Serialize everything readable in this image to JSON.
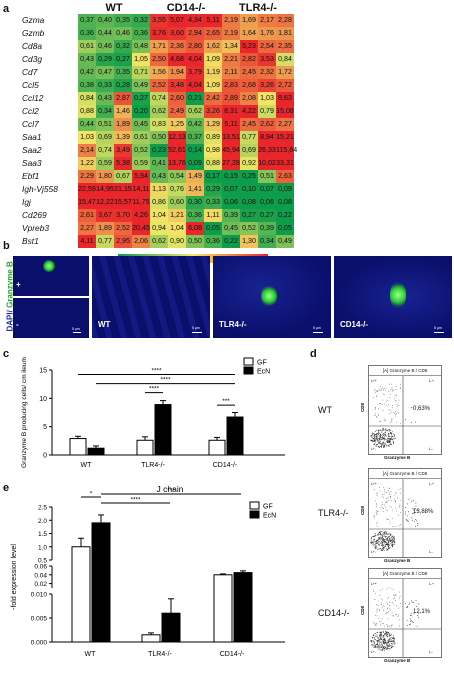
{
  "panel_labels": {
    "a": "a",
    "b": "b",
    "c": "c",
    "d": "d",
    "e": "e"
  },
  "heatmap": {
    "groups": [
      "WT",
      "CD14-/-",
      "TLR4-/-"
    ],
    "genes": [
      "Gzma",
      "Gzmb",
      "Cd8a",
      "Cd3g",
      "Cd7",
      "Ccl5",
      "Ccl12",
      "Ccl2",
      "Ccl7",
      "Saa1",
      "Saa2",
      "Saa3",
      "Ebf1",
      "Igh-Vj558",
      "Igj",
      "Cd269",
      "Vpreb3",
      "Bst1"
    ],
    "values": [
      [
        "0,37",
        "0,40",
        "0,35",
        "0,32",
        "3,55",
        "5,07",
        "4,34",
        "5,11",
        "2,19",
        "1,69",
        "2,17",
        "2,28"
      ],
      [
        "0,36",
        "0,44",
        "0,46",
        "0,36",
        "3,76",
        "3,60",
        "2,94",
        "2,65",
        "2,19",
        "1,64",
        "1,76",
        "1,81"
      ],
      [
        "0,61",
        "0,46",
        "0,32",
        "0,48",
        "1,71",
        "2,36",
        "2,80",
        "1,62",
        "1,34",
        "5,23",
        "2,54",
        "2,35"
      ],
      [
        "0,43",
        "0,29",
        "0,27",
        "1,05",
        "2,50",
        "4,68",
        "4,04",
        "1,09",
        "2,21",
        "2,82",
        "3,53",
        "0,84"
      ],
      [
        "0,42",
        "0,47",
        "0,35",
        "0,71",
        "1,56",
        "1,94",
        "3,79",
        "1,19",
        "2,11",
        "2,45",
        "2,32",
        "1,72"
      ],
      [
        "0,38",
        "0,33",
        "0,28",
        "0,49",
        "2,52",
        "3,48",
        "4,04",
        "1,09",
        "2,83",
        "2,68",
        "3,26",
        "2,72"
      ],
      [
        "0,84",
        "0,43",
        "2,87",
        "0,27",
        "0,74",
        "2,60",
        "0,21",
        "2,42",
        "2,89",
        "2,08",
        "1,03",
        "8,63"
      ],
      [
        "0,88",
        "0,34",
        "1,46",
        "0,20",
        "0,62",
        "2,49",
        "0,62",
        "3,26",
        "8,31",
        "4,22",
        "0,79",
        "15,08"
      ],
      [
        "0,44",
        "0,51",
        "1,89",
        "0,45",
        "0,83",
        "1,25",
        "0,42",
        "1,29",
        "5,11",
        "2,45",
        "2,62",
        "2,27"
      ],
      [
        "1,03",
        "0,69",
        "1,39",
        "0,61",
        "0,50",
        "12,13",
        "0,37",
        "0,89",
        "13,51",
        "0,77",
        "8,94",
        "15,21"
      ],
      [
        "2,14",
        "0,74",
        "3,49",
        "0,52",
        "0,23",
        "52,61",
        "0,14",
        "0,98",
        "45,94",
        "0,69",
        "26,33",
        "115,84"
      ],
      [
        "1,22",
        "0,59",
        "5,38",
        "0,59",
        "0,41",
        "13,76",
        "0,09",
        "0,88",
        "27,28",
        "0,92",
        "10,02",
        "33,31"
      ],
      [
        "2,29",
        "1,80",
        "0,67",
        "5,94",
        "0,43",
        "0,54",
        "1,49",
        "0,17",
        "0,15",
        "0,25",
        "0,51",
        "2,63"
      ],
      [
        "22,59",
        "14,95",
        "21,15",
        "14,11",
        "1,13",
        "0,76",
        "1,41",
        "0,29",
        "0,07",
        "0,10",
        "0,07",
        "0,09"
      ],
      [
        "15,47",
        "12,22",
        "15,57",
        "11,75",
        "0,86",
        "0,60",
        "0,30",
        "0,33",
        "0,06",
        "0,08",
        "0,06",
        "0,08"
      ],
      [
        "2,61",
        "3,67",
        "3,70",
        "4,26",
        "1,04",
        "1,21",
        "0,36",
        "1,11",
        "0,39",
        "0,27",
        "0,27",
        "0,22"
      ],
      [
        "2,27",
        "1,89",
        "2,52",
        "20,45",
        "0,94",
        "1,04",
        "6,08",
        "0,05",
        "0,45",
        "0,52",
        "0,39",
        "0,05"
      ],
      [
        "4,11",
        "0,77",
        "2,95",
        "2,06",
        "0,62",
        "0,90",
        "0,50",
        "0,36",
        "0,22",
        "1,30",
        "0,34",
        "0,49"
      ]
    ],
    "legend": {
      "low": "low",
      "equal": "equal",
      "high": "high",
      "colors": {
        "low": "#0e9d4b",
        "equal": "#f3e866",
        "high": "#e8262b"
      }
    }
  },
  "panel_b": {
    "stain_label": "DAPI/ Granzyme B",
    "stain_dapi": "DAPI/",
    "stain_gzmb": "Granzyme B",
    "inset_plus": "+",
    "inset_minus": "-",
    "panels": [
      {
        "label": "WT",
        "scale": "5 µm"
      },
      {
        "label": "TLR4-/-",
        "scale": "5 µm"
      },
      {
        "label": "CD14-/-",
        "scale": "5 µm"
      }
    ],
    "inset_scale": "5 µm",
    "colors": {
      "dapi": "#0a0f6b",
      "gzmb": "#2fd035"
    }
  },
  "chart_c": {
    "chart_data": {
      "type": "bar",
      "ylabel": "Granzyme B producing cells/ cm ileum",
      "categories": [
        "WT",
        "TLR4-/-",
        "CD14-/-"
      ],
      "series": [
        {
          "name": "GF",
          "values": [
            2.9,
            2.6,
            2.6
          ],
          "errors": [
            0.4,
            0.6,
            0.5
          ],
          "color": "#ffffff"
        },
        {
          "name": "EcN",
          "values": [
            1.2,
            8.9,
            6.7
          ],
          "errors": [
            0.4,
            0.7,
            0.8
          ],
          "color": "#000000"
        }
      ],
      "ylim": [
        0,
        15
      ],
      "yticks": [
        "0",
        "5",
        "10",
        "15"
      ],
      "significance": [
        {
          "label": "****"
        },
        {
          "label": "****"
        },
        {
          "label": "****"
        },
        {
          "label": "***"
        }
      ]
    }
  },
  "chart_e": {
    "chart_data": {
      "type": "bar",
      "title": "J chain",
      "ylabel": "-fold expression level",
      "categories": [
        "WT",
        "TLR4-/-",
        "CD14-/-"
      ],
      "series": [
        {
          "name": "GF",
          "values": [
            1.0,
            0.0015,
            0.04
          ],
          "errors": [
            0.32,
            0.0004,
            0.002
          ],
          "color": "#ffffff"
        },
        {
          "name": "EcN",
          "values": [
            1.9,
            0.006,
            0.045
          ],
          "errors": [
            0.3,
            0.003,
            0.004
          ],
          "color": "#000000"
        }
      ],
      "yticks_upper": [
        "0.5",
        "1.0",
        "1.5",
        "2.0",
        "2.5"
      ],
      "yticks_mid": [
        "0.02",
        "0.04",
        "0.06"
      ],
      "yticks_lower": [
        "0.000",
        "0.005",
        "0.010"
      ],
      "significance": [
        {
          "label": "*"
        },
        {
          "label": "****"
        },
        {
          "label": "***"
        }
      ]
    }
  },
  "panel_d": {
    "plots": [
      {
        "label": "WT",
        "header": "[A] Granzyme B / CD8",
        "percent": "0,63%",
        "q": [
          "L++",
          "L-+",
          "L+-",
          "L--"
        ]
      },
      {
        "label": "TLR4-/-",
        "header": "[A] Granzyme B / CD8",
        "percent": "13,88%",
        "q": [
          "L++",
          "L-+",
          "L+-",
          "L--"
        ]
      },
      {
        "label": "CD14-/-",
        "header": "[A] Granzyme B / CD8",
        "percent": "12,1%",
        "q": [
          "L++",
          "L-+",
          "L+-",
          "L--"
        ]
      }
    ],
    "xlabel": "Granzyme B",
    "ylabel": "CD8"
  }
}
